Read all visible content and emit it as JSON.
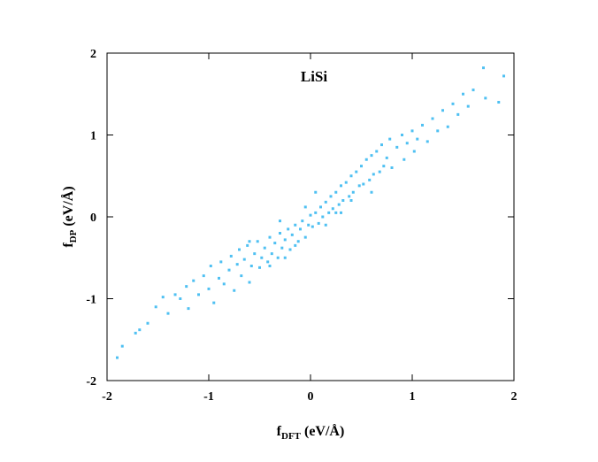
{
  "chart_data": {
    "type": "scatter",
    "title": "LiSi",
    "xlabel": {
      "main": "f",
      "sub": "DFT",
      "unit": "(eV/Å)"
    },
    "ylabel": {
      "main": "f",
      "sub": "DP",
      "unit": "(eV/Å)"
    },
    "color": "#4fc0f2",
    "xlim": [
      -2,
      2
    ],
    "ylim": [
      -2,
      2
    ],
    "xticks": [
      -2,
      -1,
      0,
      1,
      2
    ],
    "yticks": [
      -2,
      -1,
      0,
      1,
      2
    ],
    "x": [
      -1.9,
      -1.85,
      -1.72,
      -1.68,
      -1.6,
      -1.52,
      -1.45,
      -1.4,
      -1.33,
      -1.28,
      -1.22,
      -1.2,
      -1.15,
      -1.1,
      -1.05,
      -1.0,
      -0.98,
      -0.95,
      -0.9,
      -0.88,
      -0.85,
      -0.8,
      -0.78,
      -0.75,
      -0.72,
      -0.7,
      -0.68,
      -0.65,
      -0.62,
      -0.6,
      -0.58,
      -0.55,
      -0.52,
      -0.5,
      -0.48,
      -0.45,
      -0.42,
      -0.4,
      -0.38,
      -0.35,
      -0.32,
      -0.3,
      -0.28,
      -0.25,
      -0.22,
      -0.2,
      -0.18,
      -0.15,
      -0.12,
      -0.1,
      -0.08,
      -0.05,
      -0.02,
      0,
      0.02,
      0.05,
      0.08,
      0.1,
      0.12,
      0.15,
      0.18,
      0.2,
      0.22,
      0.25,
      0.28,
      0.3,
      0.32,
      0.35,
      0.38,
      0.4,
      0.42,
      0.45,
      0.48,
      0.5,
      0.52,
      0.55,
      0.58,
      0.6,
      0.62,
      0.65,
      0.68,
      0.7,
      0.72,
      0.75,
      0.78,
      0.8,
      0.85,
      0.9,
      0.92,
      0.95,
      1.0,
      1.02,
      1.05,
      1.1,
      1.15,
      1.2,
      1.25,
      1.3,
      1.35,
      1.4,
      1.45,
      1.5,
      1.55,
      1.6,
      1.7,
      1.72,
      1.85,
      1.9,
      -0.3,
      0.3,
      -0.15,
      0.05,
      0.15,
      -0.05,
      0.25,
      -0.25,
      0.4,
      -0.4,
      0.6,
      -0.6
    ],
    "values": [
      -1.72,
      -1.58,
      -1.42,
      -1.38,
      -1.3,
      -1.1,
      -0.98,
      -1.18,
      -0.95,
      -1.0,
      -0.85,
      -1.12,
      -0.78,
      -0.95,
      -0.72,
      -0.88,
      -0.6,
      -1.05,
      -0.75,
      -0.55,
      -0.82,
      -0.65,
      -0.48,
      -0.9,
      -0.58,
      -0.4,
      -0.72,
      -0.52,
      -0.35,
      -0.8,
      -0.6,
      -0.45,
      -0.3,
      -0.62,
      -0.5,
      -0.38,
      -0.55,
      -0.25,
      -0.45,
      -0.32,
      -0.5,
      -0.2,
      -0.38,
      -0.28,
      -0.15,
      -0.4,
      -0.22,
      -0.1,
      -0.3,
      -0.15,
      -0.05,
      -0.25,
      -0.1,
      0.02,
      -0.12,
      0.05,
      -0.08,
      0.12,
      0.0,
      0.18,
      0.05,
      0.25,
      0.1,
      0.3,
      0.15,
      0.38,
      0.2,
      0.42,
      0.25,
      0.5,
      0.3,
      0.55,
      0.38,
      0.62,
      0.4,
      0.7,
      0.45,
      0.75,
      0.52,
      0.8,
      0.55,
      0.88,
      0.62,
      0.72,
      0.95,
      0.6,
      0.85,
      1.0,
      0.7,
      0.9,
      1.05,
      0.8,
      0.95,
      1.12,
      0.92,
      1.2,
      1.05,
      1.3,
      1.1,
      1.38,
      1.25,
      1.5,
      1.35,
      1.55,
      1.82,
      1.45,
      1.4,
      1.72,
      -0.05,
      0.05,
      -0.35,
      0.3,
      -0.1,
      0.12,
      0.05,
      -0.5,
      0.2,
      -0.6,
      0.3,
      -0.3
    ]
  }
}
